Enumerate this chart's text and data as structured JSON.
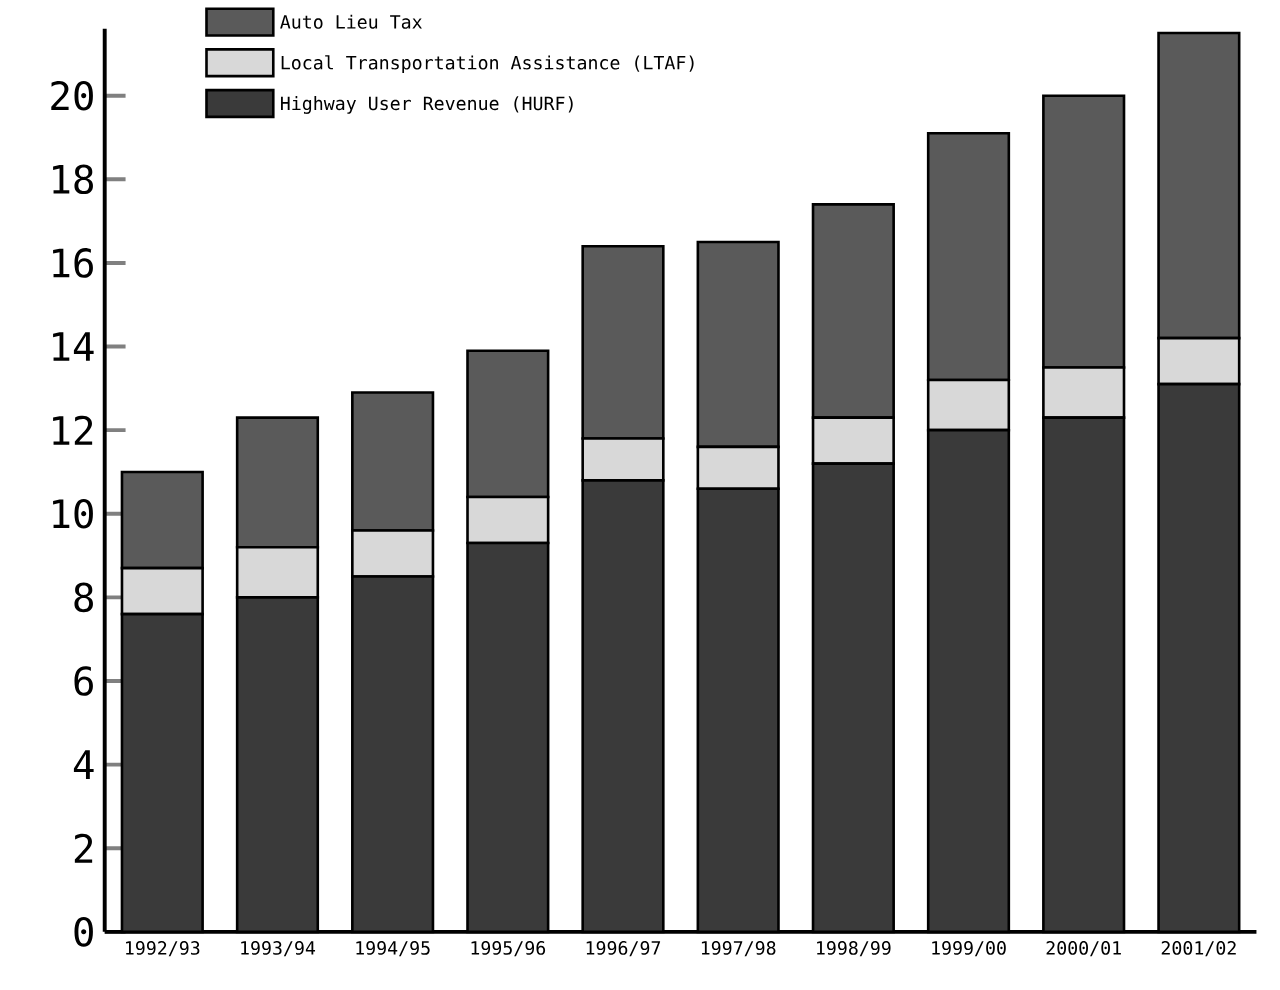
{
  "chart_data": {
    "type": "bar",
    "stacked": true,
    "categories": [
      "1992/93",
      "1993/94",
      "1994/95",
      "1995/96",
      "1996/97",
      "1997/98",
      "1998/99",
      "1999/00",
      "2000/01",
      "2001/02"
    ],
    "series": [
      {
        "name": "Highway User Revenue (HURF)",
        "color": "#3a3a3a",
        "values": [
          7.6,
          8.0,
          8.5,
          9.3,
          10.8,
          10.6,
          11.2,
          12.0,
          12.3,
          13.1
        ]
      },
      {
        "name": "Local Transportation Assistance (LTAF)",
        "color": "#d8d8d8",
        "values": [
          1.1,
          1.2,
          1.1,
          1.1,
          1.0,
          1.0,
          1.1,
          1.2,
          1.2,
          1.1
        ]
      },
      {
        "name": "Auto Lieu Tax",
        "color": "#5a5a5a",
        "values": [
          2.3,
          3.1,
          3.3,
          3.5,
          4.6,
          4.9,
          5.1,
          5.9,
          6.5,
          7.3
        ]
      }
    ],
    "ylim": [
      0,
      21.6
    ],
    "yticks": [
      0,
      2,
      4,
      6,
      8,
      10,
      12,
      14,
      16,
      18,
      20
    ],
    "grid": false,
    "legend": "top left"
  }
}
